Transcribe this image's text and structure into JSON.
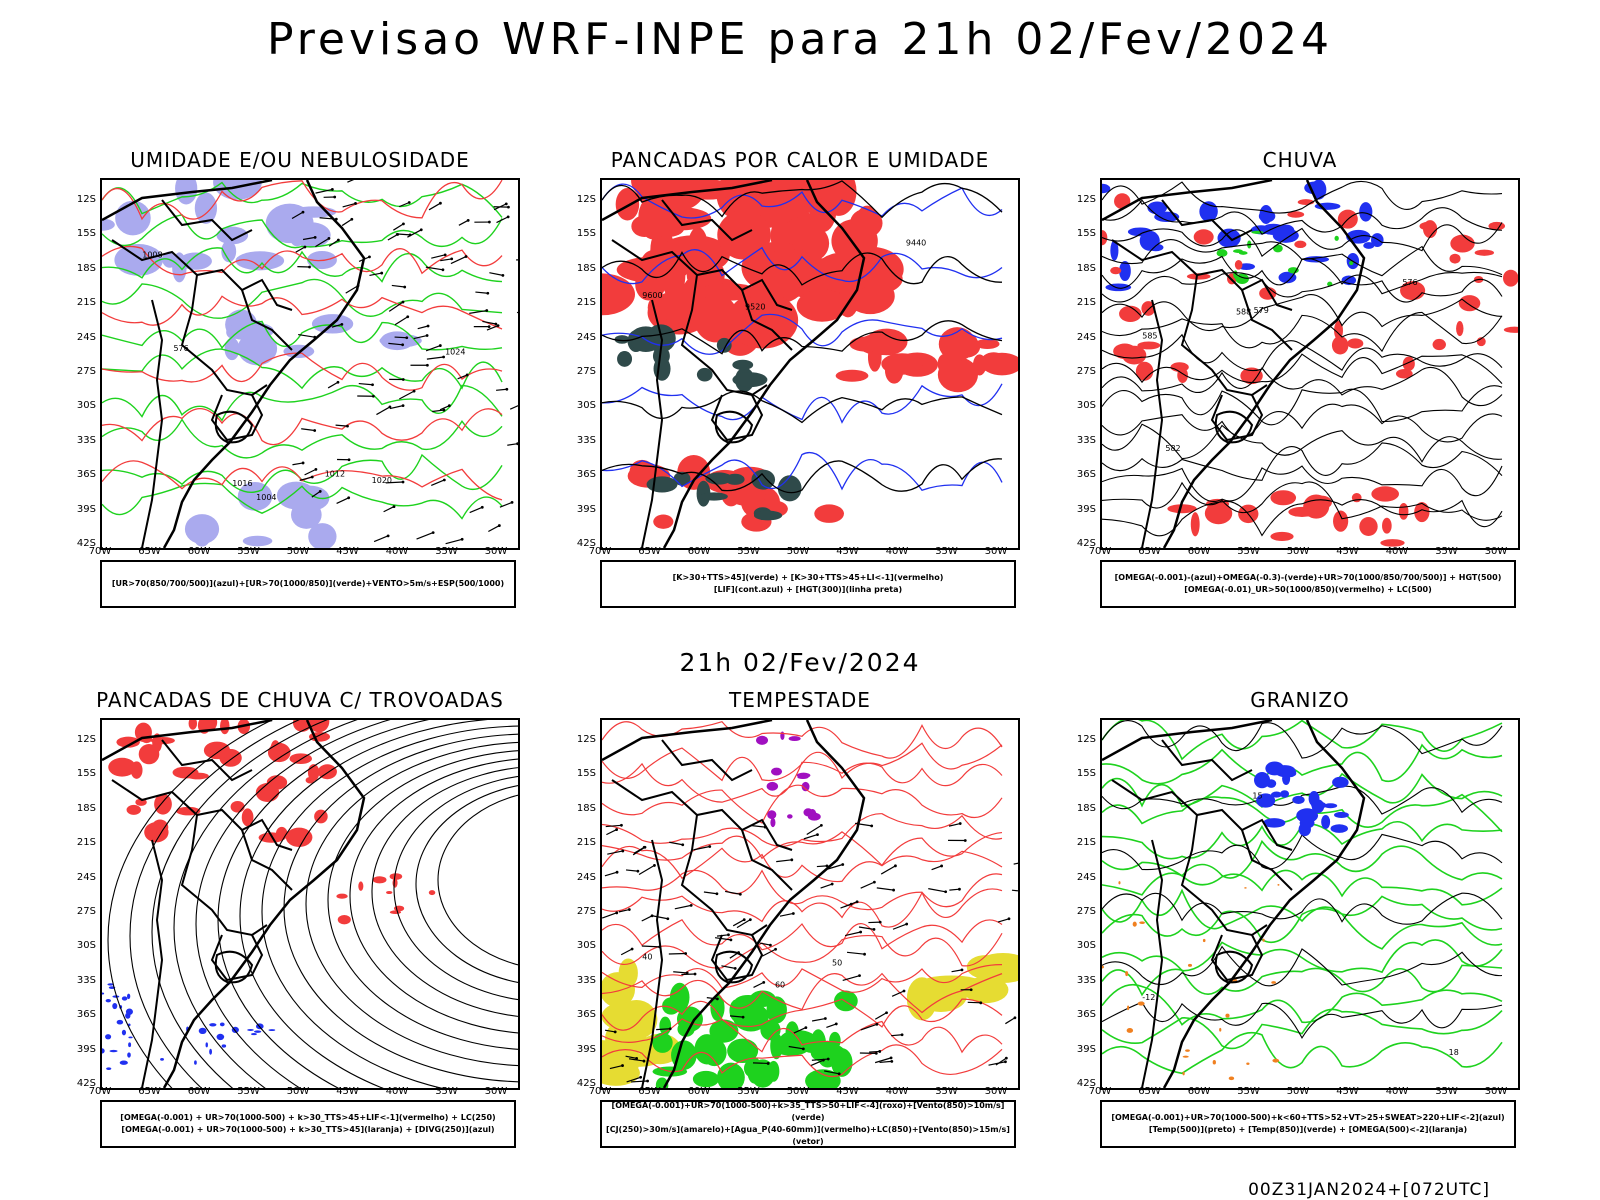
{
  "title": "Previsao WRF-INPE  para 21h 02/Fev/2024",
  "mid_title": "21h 02/Fev/2024",
  "footer": "00Z31JAN2024+[072UTC]",
  "axes": {
    "lat": [
      "12S",
      "15S",
      "18S",
      "21S",
      "24S",
      "27S",
      "30S",
      "33S",
      "36S",
      "39S",
      "42S"
    ],
    "lon": [
      "70W",
      "65W",
      "60W",
      "55W",
      "50W",
      "45W",
      "40W",
      "35W",
      "30W"
    ]
  },
  "colors": {
    "red": "#f23c3c",
    "green": "#1ed21e",
    "blue": "#2030f0",
    "lavender": "#aaaaee",
    "darkteal": "#2f4a4a",
    "yellow": "#e6dc32",
    "purple": "#a010c0",
    "orange": "#f08020"
  },
  "panels": [
    {
      "title": "UMIDADE E/OU NEBULOSIDADE",
      "legend": [
        "[UR>70(850/700/500)](azul)+[UR>70(1000/850)](verde)+VENTO>5m/s+ESP(500/1000)"
      ],
      "labels": [
        "1008",
        "1012",
        "1016",
        "1020",
        "1024",
        "1004",
        "576"
      ]
    },
    {
      "title": "PANCADAS POR CALOR E UMIDADE",
      "legend": [
        "[K>30+TTS>45](verde) + [K>30+TTS>45+LI<-1](vermelho)",
        "[LIF](cont.azul) + [HGT(300)](linha preta)"
      ],
      "labels": [
        "9600",
        "9520",
        "9440"
      ]
    },
    {
      "title": "CHUVA",
      "legend": [
        "[OMEGA(-0.001)-(azul)+OMEGA(-0.3)-(verde)+UR>70(1000/850/700/500)] + HGT(500)",
        "[OMEGA(-0.01)_UR>50(1000/850)(vermelho) + LC(500)"
      ],
      "labels": [
        "585",
        "582",
        "579",
        "576",
        "588"
      ]
    },
    {
      "title": "PANCADAS DE CHUVA C/ TROVOADAS",
      "legend": [
        "[OMEGA(-0.001) + UR>70(1000-500) + k>30_TTS>45+LIF<-1](vermelho) + LC(250)",
        "[OMEGA(-0.001) + UR>70(1000-500) + k>30_TTS>45](laranja) + [DIVG(250)](azul)"
      ],
      "labels": []
    },
    {
      "title": "TEMPESTADE",
      "legend": [
        "[OMEGA(-0.001)+UR>70(1000-500)+k>35_TTS>50+LIF<-4](roxo)+[Vento(850)>10m/s](verde)",
        "[CJ(250)>30m/s](amarelo)+[Agua_P(40-60mm)](vermelho)+LC(850)+[Vento(850)>15m/s](vetor)"
      ],
      "labels": [
        "40",
        "50",
        "60"
      ]
    },
    {
      "title": "GRANIZO",
      "legend": [
        "[OMEGA(-0.001)+UR>70(1000-500)+k<60+TTS>52+VT>25+SWEAT>220+LIF<-2](azul)",
        "[Temp(500)](preto) + [Temp(850)](verde) + [OMEGA(500)<-2](laranja)"
      ],
      "labels": [
        "-12",
        "15",
        "18"
      ]
    }
  ]
}
